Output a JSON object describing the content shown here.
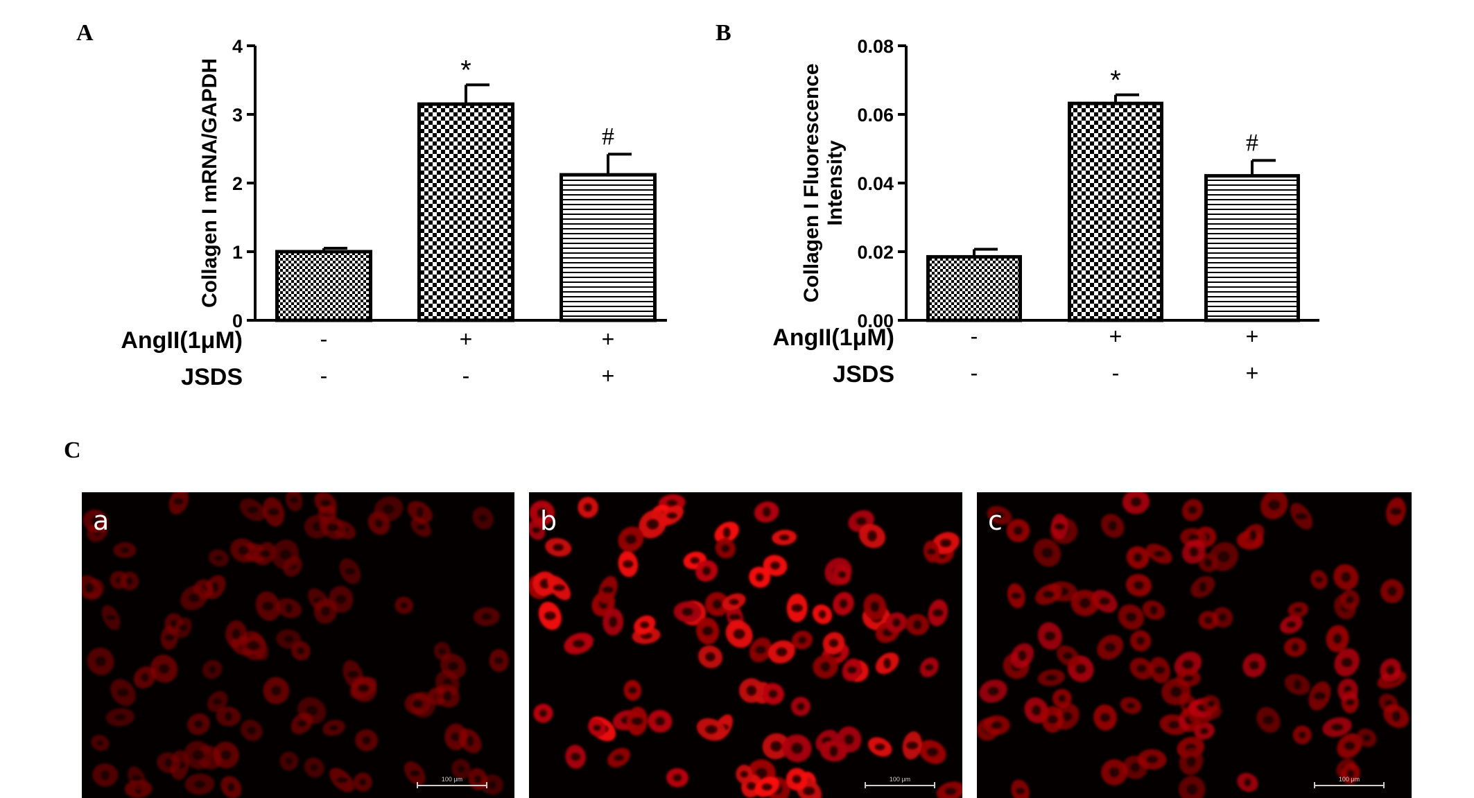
{
  "panels": {
    "A": {
      "letter": "A"
    },
    "B": {
      "letter": "B"
    },
    "C": {
      "letter": "C"
    }
  },
  "chart_data": [
    {
      "id": "A",
      "type": "bar",
      "ylabel": "Collagen I  mRNA/GAPDH",
      "ylim": [
        0,
        4
      ],
      "yticks": [
        "0",
        "1",
        "2",
        "3",
        "4"
      ],
      "values": [
        1.0,
        3.15,
        2.12
      ],
      "errors": [
        0.05,
        0.28,
        0.3
      ],
      "significance": [
        "",
        "*",
        "#"
      ],
      "patterns": [
        "fine-checker",
        "coarse-checker",
        "horizontal-lines"
      ],
      "conditions": [
        {
          "label": "AngII(1μM)",
          "values": [
            "-",
            "+",
            "+"
          ]
        },
        {
          "label": "JSDS",
          "values": [
            "-",
            "-",
            "+"
          ]
        }
      ]
    },
    {
      "id": "B",
      "type": "bar",
      "ylabel": [
        "Collagen I Fluorescence",
        "Intensity"
      ],
      "ylim": [
        0,
        0.08
      ],
      "yticks": [
        "0.00",
        "0.02",
        "0.04",
        "0.06",
        "0.08"
      ],
      "values": [
        0.0185,
        0.0632,
        0.0421
      ],
      "errors": [
        0.0022,
        0.0025,
        0.0045
      ],
      "significance": [
        "",
        "*",
        "#"
      ],
      "patterns": [
        "fine-checker",
        "coarse-checker",
        "horizontal-lines"
      ],
      "conditions": [
        {
          "label": "AngII(1μM)",
          "values": [
            "-",
            "+",
            "+"
          ]
        },
        {
          "label": "JSDS",
          "values": [
            "-",
            "-",
            "+"
          ]
        }
      ]
    }
  ],
  "micrographs": [
    {
      "label": "a",
      "scale_bar": "100 μm",
      "intensity": 0.45
    },
    {
      "label": "b",
      "scale_bar": "100 μm",
      "intensity": 1.0
    },
    {
      "label": "c",
      "scale_bar": "100 μm",
      "intensity": 0.7
    }
  ]
}
